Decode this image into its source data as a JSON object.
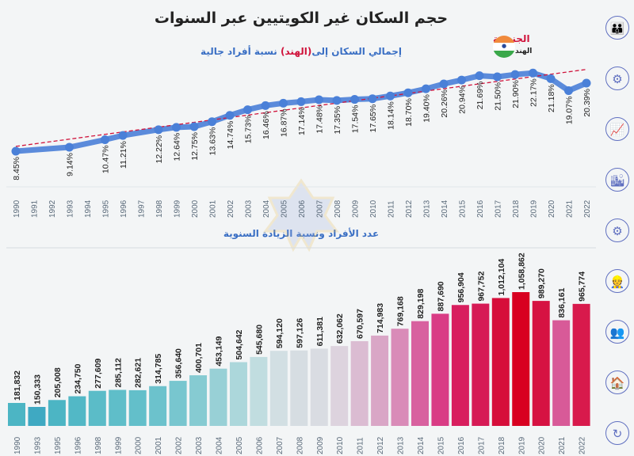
{
  "header": {
    "title": "حجم السكان غير الكويتيين عبر السنوات",
    "subtitle_prefix": "إجمالي السكان إلى",
    "subtitle_highlight": "(الهند)",
    "subtitle_suffix": "نسبة أفراد جالية",
    "nationality_label": "الجنسية",
    "nationality_value": "الهند"
  },
  "colors": {
    "line": "#4a80d8",
    "trend": "#d0143c",
    "title_blue": "#3a6fc4",
    "accent_red": "#d0143c"
  },
  "side_icons": [
    "family-icon",
    "community-network-icon",
    "growth-chart-people-icon",
    "city-people-icon",
    "group-gear-icon",
    "workers-icon",
    "crowd-icon",
    "home-family-icon",
    "home-cycle-icon"
  ],
  "chart_data": [
    {
      "type": "line",
      "title": "إجمالي السكان إلى (الهند) نسبة أفراد جالية",
      "x_ticks": [
        1990,
        1991,
        1992,
        1993,
        1994,
        1995,
        1996,
        1997,
        1998,
        1999,
        2000,
        2001,
        2002,
        2003,
        2004,
        2005,
        2006,
        2007,
        2008,
        2009,
        2010,
        2011,
        2012,
        2013,
        2014,
        2015,
        2016,
        2017,
        2018,
        2019,
        2020,
        2021,
        2022
      ],
      "x": [
        1990,
        1993,
        1995,
        1996,
        1998,
        1999,
        2000,
        2001,
        2002,
        2003,
        2004,
        2005,
        2006,
        2007,
        2008,
        2009,
        2010,
        2011,
        2012,
        2013,
        2014,
        2015,
        2016,
        2017,
        2018,
        2019,
        2020,
        2021,
        2022
      ],
      "values": [
        8.45,
        9.14,
        10.47,
        11.21,
        12.22,
        12.64,
        12.75,
        13.63,
        14.74,
        15.73,
        16.46,
        16.87,
        17.14,
        17.48,
        17.35,
        17.54,
        17.65,
        18.14,
        18.7,
        19.4,
        20.26,
        20.94,
        21.69,
        21.5,
        21.9,
        22.17,
        21.18,
        19.07,
        20.39
      ],
      "labels": [
        "8.45%",
        "9.14%",
        "10.47%",
        "11.21%",
        "12.22%",
        "12.64%",
        "12.75%",
        "13.63%",
        "14.74%",
        "15.73%",
        "16.46%",
        "16.87%",
        "17.14%",
        "17.48%",
        "17.35%",
        "17.54%",
        "17.65%",
        "18.14%",
        "18.70%",
        "19.40%",
        "20.26%",
        "20.94%",
        "21.69%",
        "21.50%",
        "21.90%",
        "22.17%",
        "21.18%",
        "19.07%",
        "20.39%"
      ],
      "trendline": {
        "style": "dashed",
        "start": [
          1990,
          9.3
        ],
        "end": [
          2022,
          22.8
        ]
      },
      "unit": "%"
    },
    {
      "type": "bar",
      "title": "عدد الأفراد ونسبة الزيادة السنوية",
      "categories": [
        "1990",
        "1993",
        "1995",
        "1996",
        "1998",
        "1999",
        "2000",
        "2001",
        "2002",
        "2003",
        "2004",
        "2005",
        "2006",
        "2007",
        "2008",
        "2009",
        "2010",
        "2011",
        "2012",
        "2013",
        "2014",
        "2015",
        "2016",
        "2017",
        "2018",
        "2019",
        "2020",
        "2021",
        "2022"
      ],
      "values": [
        181832,
        150333,
        205008,
        234750,
        277609,
        285112,
        282621,
        314785,
        356640,
        400701,
        453149,
        504642,
        545680,
        594120,
        597126,
        611381,
        632062,
        670597,
        714983,
        769168,
        829198,
        887690,
        956904,
        967752,
        1012104,
        1058862,
        989270,
        836161,
        965774
      ],
      "labels": [
        "181,832",
        "150,333",
        "205,008",
        "234,750",
        "277,609",
        "285,112",
        "282,621",
        "314,785",
        "356,640",
        "400,701",
        "453,149",
        "504,642",
        "545,680",
        "594,120",
        "597,126",
        "611,381",
        "632,062",
        "670,597",
        "714,983",
        "769,168",
        "829,198",
        "887,690",
        "956,904",
        "967,752",
        "1,012,104",
        "1,058,862",
        "989,270",
        "836,161",
        "965,774"
      ],
      "colors": [
        "#4cb5c4",
        "#3fa9c2",
        "#4cb5c4",
        "#52b8c6",
        "#5bbcc8",
        "#5fbec9",
        "#63bfca",
        "#6cc2cc",
        "#78c6cf",
        "#86cbd2",
        "#98d0d6",
        "#acd7db",
        "#c1dde0",
        "#d2dfe3",
        "#d6dde2",
        "#d9dce2",
        "#ddd3de",
        "#dbbcd2",
        "#d9a6c6",
        "#d98bb8",
        "#d8619f",
        "#d93c85",
        "#d81e5e",
        "#d61a55",
        "#d60e3a",
        "#d80020",
        "#d61242",
        "#d85a98",
        "#d81a4c"
      ],
      "ylim": [
        0,
        1100000
      ]
    }
  ]
}
